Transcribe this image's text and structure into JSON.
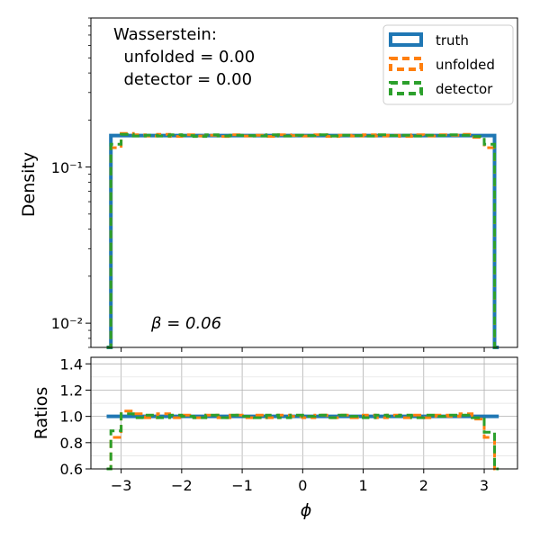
{
  "chart_data": [
    {
      "type": "line",
      "panel": "main",
      "ylabel": "Density",
      "yscale": "log",
      "ylim": [
        0.007,
        0.9
      ],
      "xlim": [
        -3.5,
        3.55
      ],
      "y_ticks": [
        {
          "value": 0.01,
          "label": "10⁻²"
        },
        {
          "value": 0.1,
          "label": "10⁻¹"
        }
      ],
      "grid": false,
      "legend_position": "top-right",
      "annotation_lines": [
        "Wasserstein:",
        "  unfolded = 0.00",
        "  detector = 0.00"
      ],
      "beta_label": "β = 0.06",
      "x": [
        -3.24,
        -3.1,
        -2.9,
        -2.7,
        -2.5,
        -2.3,
        -2.1,
        -1.9,
        -1.7,
        -1.5,
        -1.3,
        -1.1,
        -0.9,
        -0.7,
        -0.5,
        -0.3,
        -0.1,
        0.1,
        0.3,
        0.5,
        0.7,
        0.9,
        1.1,
        1.3,
        1.5,
        1.7,
        1.9,
        2.1,
        2.3,
        2.5,
        2.7,
        2.9,
        3.1,
        3.24
      ],
      "series": [
        {
          "name": "truth",
          "color": "#1f77b4",
          "values": [
            0.007,
            0.159,
            0.159,
            0.159,
            0.159,
            0.159,
            0.159,
            0.159,
            0.159,
            0.159,
            0.159,
            0.159,
            0.159,
            0.159,
            0.159,
            0.159,
            0.159,
            0.159,
            0.159,
            0.159,
            0.159,
            0.159,
            0.159,
            0.159,
            0.159,
            0.159,
            0.159,
            0.159,
            0.159,
            0.159,
            0.159,
            0.159,
            0.159,
            0.007
          ]
        },
        {
          "name": "unfolded",
          "color": "#ff7f0e",
          "values": [
            0.007,
            0.133,
            0.164,
            0.161,
            0.158,
            0.162,
            0.157,
            0.161,
            0.158,
            0.16,
            0.157,
            0.161,
            0.158,
            0.16,
            0.157,
            0.161,
            0.159,
            0.158,
            0.161,
            0.157,
            0.16,
            0.158,
            0.161,
            0.158,
            0.16,
            0.157,
            0.161,
            0.158,
            0.161,
            0.16,
            0.162,
            0.155,
            0.133,
            0.007
          ]
        },
        {
          "name": "detector",
          "color": "#2ca02c",
          "values": [
            0.007,
            0.14,
            0.162,
            0.158,
            0.16,
            0.158,
            0.161,
            0.159,
            0.157,
            0.161,
            0.158,
            0.16,
            0.159,
            0.158,
            0.161,
            0.158,
            0.16,
            0.159,
            0.161,
            0.158,
            0.16,
            0.159,
            0.158,
            0.161,
            0.159,
            0.16,
            0.158,
            0.16,
            0.159,
            0.161,
            0.16,
            0.157,
            0.14,
            0.007
          ]
        }
      ]
    },
    {
      "type": "line",
      "panel": "ratio",
      "xlabel": "ϕ",
      "ylabel": "Ratios",
      "ylim": [
        0.6,
        1.45
      ],
      "xlim": [
        -3.5,
        3.55
      ],
      "x_ticks": [
        -3,
        -2,
        -1,
        0,
        1,
        2,
        3
      ],
      "x_tick_labels": [
        "−3",
        "−2",
        "−1",
        "0",
        "1",
        "2",
        "3"
      ],
      "y_ticks": [
        0.6,
        0.8,
        1.0,
        1.2,
        1.4
      ],
      "y_tick_labels": [
        "0.6",
        "0.8",
        "1.0",
        "1.2",
        "1.4"
      ],
      "grid": true,
      "x": [
        -3.24,
        -3.1,
        -2.9,
        -2.7,
        -2.5,
        -2.3,
        -2.1,
        -1.9,
        -1.7,
        -1.5,
        -1.3,
        -1.1,
        -0.9,
        -0.7,
        -0.5,
        -0.3,
        -0.1,
        0.1,
        0.3,
        0.5,
        0.7,
        0.9,
        1.1,
        1.3,
        1.5,
        1.7,
        1.9,
        2.1,
        2.3,
        2.5,
        2.7,
        2.9,
        3.1,
        3.24
      ],
      "series": [
        {
          "name": "truth",
          "color": "#1f77b4",
          "values": [
            1.0,
            1.0,
            1.0,
            1.0,
            1.0,
            1.0,
            1.0,
            1.0,
            1.0,
            1.0,
            1.0,
            1.0,
            1.0,
            1.0,
            1.0,
            1.0,
            1.0,
            1.0,
            1.0,
            1.0,
            1.0,
            1.0,
            1.0,
            1.0,
            1.0,
            1.0,
            1.0,
            1.0,
            1.0,
            1.0,
            1.0,
            1.0,
            1.0,
            1.0
          ]
        },
        {
          "name": "unfolded",
          "color": "#ff7f0e",
          "values": [
            0.6,
            0.84,
            1.04,
            1.02,
            0.99,
            1.02,
            0.99,
            1.01,
            0.99,
            1.01,
            0.99,
            1.01,
            0.99,
            1.01,
            0.99,
            1.01,
            1.0,
            0.99,
            1.01,
            0.99,
            1.01,
            0.99,
            1.01,
            0.99,
            1.01,
            0.99,
            1.01,
            0.99,
            1.01,
            1.0,
            1.02,
            0.98,
            0.84,
            0.6
          ]
        },
        {
          "name": "detector",
          "color": "#2ca02c",
          "values": [
            0.6,
            0.89,
            1.02,
            0.99,
            1.01,
            0.99,
            1.01,
            1.0,
            0.99,
            1.01,
            0.99,
            1.01,
            1.0,
            0.99,
            1.01,
            0.99,
            1.01,
            1.0,
            1.01,
            0.99,
            1.01,
            1.0,
            0.99,
            1.01,
            1.0,
            1.01,
            0.99,
            1.01,
            1.0,
            1.01,
            1.01,
            0.99,
            0.88,
            0.6
          ]
        }
      ]
    }
  ]
}
